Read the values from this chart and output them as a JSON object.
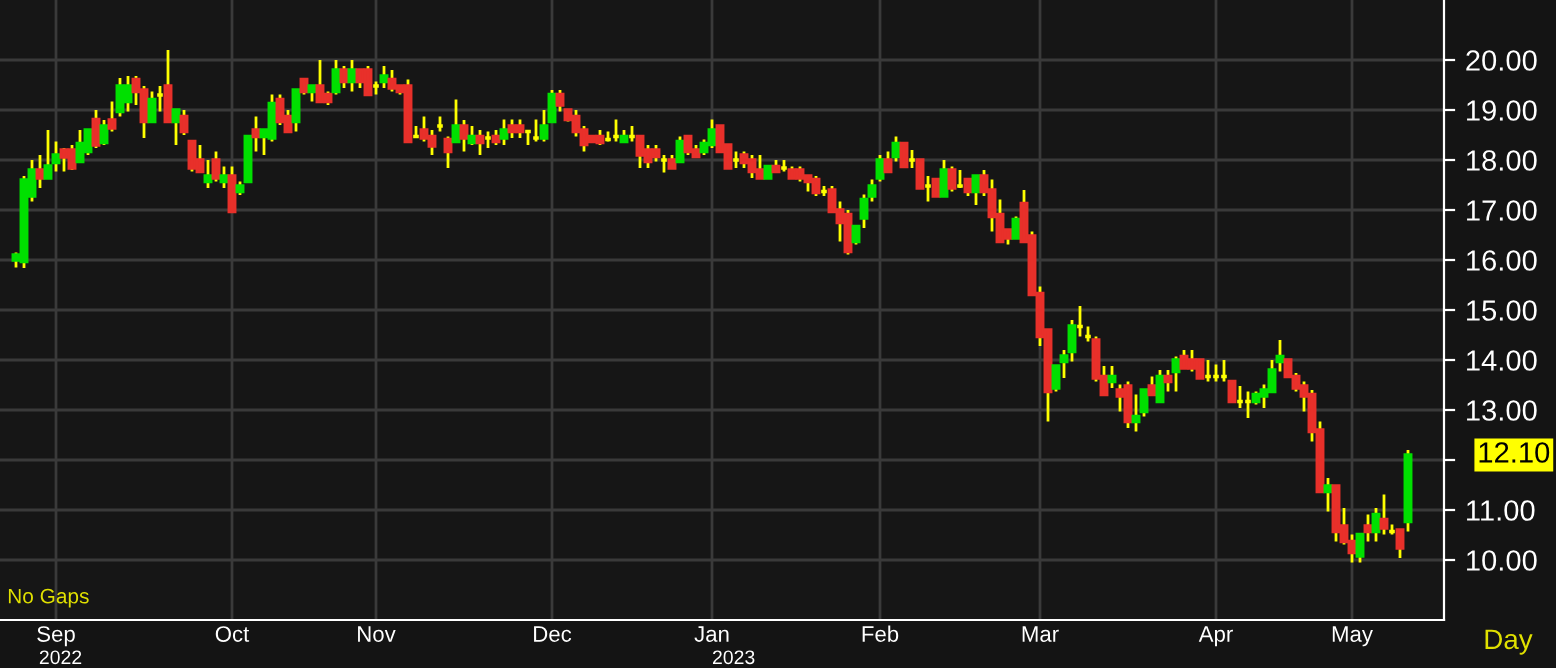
{
  "chart_data": {
    "type": "candlestick",
    "categories": [
      null,
      null,
      null,
      null,
      null,
      "Sep",
      null,
      null,
      null,
      null,
      null,
      null,
      null,
      null,
      null,
      null,
      null,
      null,
      null,
      null,
      null,
      null,
      null,
      null,
      null,
      null,
      null,
      "Oct",
      null,
      null,
      null,
      null,
      null,
      null,
      null,
      null,
      null,
      null,
      null,
      null,
      null,
      null,
      null,
      null,
      null,
      "Nov",
      null,
      null,
      null,
      null,
      null,
      null,
      null,
      null,
      null,
      null,
      null,
      null,
      null,
      null,
      null,
      null,
      null,
      null,
      null,
      null,
      null,
      "Dec",
      null,
      null,
      null,
      null,
      null,
      null,
      null,
      null,
      null,
      null,
      null,
      null,
      null,
      null,
      null,
      null,
      null,
      null,
      null,
      "Jan",
      null,
      null,
      null,
      null,
      null,
      null,
      null,
      null,
      null,
      null,
      null,
      null,
      null,
      null,
      null,
      null,
      null,
      null,
      null,
      null,
      "Feb",
      null,
      null,
      null,
      null,
      null,
      null,
      null,
      null,
      null,
      null,
      null,
      null,
      null,
      null,
      null,
      null,
      null,
      null,
      null,
      "Mar",
      null,
      null,
      null,
      null,
      null,
      null,
      null,
      null,
      null,
      null,
      null,
      null,
      null,
      null,
      null,
      null,
      null,
      null,
      null,
      null,
      null,
      "Apr",
      null,
      null,
      null,
      null,
      null,
      null,
      null,
      null,
      null,
      null,
      null,
      null,
      null,
      null,
      null,
      null,
      "May",
      null,
      null,
      null,
      null,
      null,
      null,
      null
    ],
    "ohlc": [
      [
        16.0,
        16.15,
        15.85,
        16.1
      ],
      [
        15.97,
        17.68,
        15.84,
        17.6
      ],
      [
        17.28,
        18.0,
        17.17,
        17.8
      ],
      [
        17.8,
        18.1,
        17.44,
        17.64
      ],
      [
        17.64,
        18.6,
        17.64,
        17.88
      ],
      [
        17.95,
        18.37,
        17.77,
        18.1
      ],
      [
        18.2,
        18.24,
        17.77,
        18.06
      ],
      [
        18.2,
        18.3,
        17.8,
        17.84
      ],
      [
        17.97,
        18.6,
        17.97,
        18.33
      ],
      [
        18.17,
        18.6,
        18.1,
        18.6
      ],
      [
        18.81,
        19.0,
        18.24,
        18.3
      ],
      [
        18.35,
        18.8,
        18.3,
        18.68
      ],
      [
        18.8,
        19.17,
        18.57,
        18.64
      ],
      [
        18.97,
        19.64,
        18.87,
        19.48
      ],
      [
        19.17,
        19.68,
        18.97,
        19.48
      ],
      [
        19.61,
        19.68,
        19.1,
        19.37
      ],
      [
        19.4,
        19.48,
        18.44,
        18.77
      ],
      [
        18.77,
        19.37,
        18.77,
        19.21
      ],
      [
        19.3,
        19.48,
        18.97,
        19.3
      ],
      [
        19.48,
        20.2,
        18.77,
        18.77
      ],
      [
        18.77,
        19.0,
        18.3,
        19.0
      ],
      [
        18.87,
        19.0,
        18.5,
        18.57
      ],
      [
        18.37,
        18.37,
        17.77,
        17.84
      ],
      [
        18.0,
        18.3,
        17.77,
        17.77
      ],
      [
        17.57,
        18.0,
        17.44,
        17.68
      ],
      [
        18.0,
        18.17,
        17.57,
        17.64
      ],
      [
        17.57,
        17.87,
        17.44,
        17.68
      ],
      [
        17.68,
        17.87,
        16.97,
        16.97
      ],
      [
        17.37,
        17.57,
        17.3,
        17.48
      ],
      [
        17.57,
        18.47,
        17.57,
        18.47
      ],
      [
        18.6,
        18.87,
        18.17,
        18.47
      ],
      [
        18.47,
        18.6,
        18.1,
        18.6
      ],
      [
        18.44,
        19.31,
        18.37,
        19.13
      ],
      [
        19.21,
        19.31,
        18.7,
        18.77
      ],
      [
        18.87,
        19.0,
        18.57,
        18.57
      ],
      [
        18.77,
        19.4,
        18.57,
        19.4
      ],
      [
        19.61,
        19.61,
        19.31,
        19.37
      ],
      [
        19.37,
        19.48,
        19.17,
        19.48
      ],
      [
        19.48,
        20.0,
        19.17,
        19.17
      ],
      [
        19.31,
        19.37,
        19.1,
        19.17
      ],
      [
        19.37,
        20.0,
        19.31,
        19.8
      ],
      [
        19.8,
        19.88,
        19.44,
        19.57
      ],
      [
        19.57,
        20.0,
        19.37,
        19.8
      ],
      [
        19.8,
        19.8,
        19.44,
        19.57
      ],
      [
        19.8,
        19.88,
        19.31,
        19.31
      ],
      [
        19.48,
        19.57,
        19.31,
        19.48
      ],
      [
        19.57,
        19.88,
        19.44,
        19.68
      ],
      [
        19.61,
        19.8,
        19.37,
        19.44
      ],
      [
        19.48,
        19.48,
        19.31,
        19.37
      ],
      [
        19.48,
        19.61,
        18.37,
        18.37
      ],
      [
        18.47,
        18.68,
        18.44,
        18.47
      ],
      [
        18.6,
        18.87,
        18.37,
        18.44
      ],
      [
        18.47,
        18.6,
        18.1,
        18.28
      ],
      [
        18.68,
        18.87,
        18.57,
        18.68
      ],
      [
        18.41,
        18.47,
        17.84,
        18.17
      ],
      [
        18.37,
        19.21,
        18.37,
        18.68
      ],
      [
        18.68,
        18.8,
        18.17,
        18.44
      ],
      [
        18.35,
        18.68,
        18.3,
        18.47
      ],
      [
        18.47,
        18.6,
        18.1,
        18.35
      ],
      [
        18.44,
        18.57,
        18.24,
        18.44
      ],
      [
        18.47,
        18.6,
        18.3,
        18.37
      ],
      [
        18.44,
        18.81,
        18.3,
        18.6
      ],
      [
        18.68,
        18.81,
        18.44,
        18.57
      ],
      [
        18.68,
        18.81,
        18.44,
        18.57
      ],
      [
        18.57,
        18.57,
        18.3,
        18.57
      ],
      [
        18.44,
        18.81,
        18.37,
        18.44
      ],
      [
        18.44,
        19.0,
        18.37,
        18.68
      ],
      [
        18.77,
        19.4,
        18.77,
        19.31
      ],
      [
        19.31,
        19.4,
        18.97,
        19.1
      ],
      [
        19.0,
        19.0,
        18.77,
        18.81
      ],
      [
        18.87,
        19.0,
        18.47,
        18.57
      ],
      [
        18.6,
        18.68,
        18.17,
        18.31
      ],
      [
        18.47,
        18.47,
        18.37,
        18.37
      ],
      [
        18.47,
        18.6,
        18.3,
        18.35
      ],
      [
        18.41,
        18.57,
        18.37,
        18.41
      ],
      [
        18.47,
        18.81,
        18.37,
        18.47
      ],
      [
        18.37,
        18.6,
        18.37,
        18.47
      ],
      [
        18.47,
        18.68,
        18.37,
        18.47
      ],
      [
        18.47,
        18.47,
        17.84,
        18.1
      ],
      [
        18.2,
        18.3,
        17.84,
        17.97
      ],
      [
        18.2,
        18.3,
        17.97,
        18.07
      ],
      [
        18.0,
        18.1,
        17.75,
        18.0
      ],
      [
        18.0,
        18.1,
        17.84,
        17.84
      ],
      [
        17.97,
        18.47,
        17.97,
        18.37
      ],
      [
        18.47,
        18.47,
        18.1,
        18.17
      ],
      [
        18.2,
        18.3,
        18.07,
        18.07
      ],
      [
        18.17,
        18.41,
        18.1,
        18.33
      ],
      [
        18.31,
        18.81,
        18.24,
        18.6
      ],
      [
        18.68,
        18.68,
        18.17,
        18.17
      ],
      [
        18.3,
        18.3,
        17.84,
        17.84
      ],
      [
        18.0,
        18.17,
        17.84,
        18.0
      ],
      [
        18.1,
        18.17,
        17.84,
        17.95
      ],
      [
        18.0,
        18.1,
        17.64,
        17.77
      ],
      [
        17.8,
        18.1,
        17.64,
        17.64
      ],
      [
        17.64,
        17.87,
        17.64,
        17.87
      ],
      [
        17.87,
        18.0,
        17.77,
        17.77
      ],
      [
        17.84,
        18.0,
        17.77,
        17.84
      ],
      [
        17.8,
        17.87,
        17.64,
        17.64
      ],
      [
        17.8,
        17.87,
        17.57,
        17.64
      ],
      [
        17.68,
        17.68,
        17.37,
        17.57
      ],
      [
        17.61,
        17.68,
        17.28,
        17.35
      ],
      [
        17.37,
        17.48,
        17.28,
        17.37
      ],
      [
        17.4,
        17.48,
        16.97,
        16.97
      ],
      [
        17.0,
        17.17,
        16.37,
        16.75
      ],
      [
        16.91,
        17.0,
        16.11,
        16.17
      ],
      [
        16.37,
        16.67,
        16.31,
        16.67
      ],
      [
        16.84,
        17.31,
        16.64,
        17.21
      ],
      [
        17.28,
        17.61,
        17.17,
        17.48
      ],
      [
        17.64,
        18.1,
        17.57,
        18.0
      ],
      [
        18.0,
        18.17,
        17.77,
        17.77
      ],
      [
        18.07,
        18.47,
        17.97,
        18.33
      ],
      [
        18.33,
        18.33,
        17.87,
        17.87
      ],
      [
        18.0,
        18.2,
        17.84,
        18.0
      ],
      [
        18.0,
        18.0,
        17.44,
        17.44
      ],
      [
        17.48,
        17.68,
        17.17,
        17.48
      ],
      [
        17.61,
        17.61,
        17.28,
        17.28
      ],
      [
        17.28,
        18.0,
        17.28,
        17.8
      ],
      [
        17.8,
        17.87,
        17.37,
        17.44
      ],
      [
        17.48,
        17.8,
        17.44,
        17.48
      ],
      [
        17.61,
        17.61,
        17.28,
        17.37
      ],
      [
        17.37,
        17.68,
        17.1,
        17.68
      ],
      [
        17.68,
        17.8,
        17.28,
        17.37
      ],
      [
        17.4,
        17.61,
        16.57,
        16.87
      ],
      [
        16.91,
        17.21,
        16.37,
        16.37
      ],
      [
        16.6,
        16.6,
        16.31,
        16.44
      ],
      [
        16.44,
        16.87,
        16.44,
        16.81
      ],
      [
        17.13,
        17.4,
        16.37,
        16.37
      ],
      [
        16.48,
        16.57,
        15.31,
        15.31
      ],
      [
        15.33,
        15.47,
        14.28,
        14.47
      ],
      [
        14.6,
        14.6,
        12.77,
        13.37
      ],
      [
        13.44,
        13.88,
        13.37,
        13.88
      ],
      [
        13.97,
        14.2,
        13.64,
        14.08
      ],
      [
        14.17,
        14.8,
        13.97,
        14.68
      ],
      [
        14.67,
        15.08,
        14.47,
        14.67
      ],
      [
        14.47,
        14.67,
        14.37,
        14.47
      ],
      [
        14.4,
        14.47,
        13.57,
        13.64
      ],
      [
        13.67,
        13.88,
        13.31,
        13.31
      ],
      [
        13.57,
        13.88,
        13.44,
        13.67
      ],
      [
        13.4,
        13.51,
        12.97,
        13.28
      ],
      [
        13.48,
        13.57,
        12.64,
        12.77
      ],
      [
        12.77,
        13.31,
        12.57,
        12.87
      ],
      [
        12.97,
        13.4,
        12.87,
        13.4
      ],
      [
        13.48,
        13.67,
        13.31,
        13.31
      ],
      [
        13.17,
        13.8,
        13.17,
        13.67
      ],
      [
        13.67,
        13.8,
        13.37,
        13.57
      ],
      [
        13.77,
        14.07,
        13.37,
        14.0
      ],
      [
        14.07,
        14.2,
        13.84,
        13.84
      ],
      [
        14.0,
        14.2,
        13.77,
        13.84
      ],
      [
        14.0,
        14.0,
        13.64,
        13.64
      ],
      [
        13.67,
        14.0,
        13.57,
        13.67
      ],
      [
        13.67,
        13.91,
        13.57,
        13.67
      ],
      [
        13.67,
        14.0,
        13.57,
        13.67
      ],
      [
        13.57,
        13.57,
        13.17,
        13.17
      ],
      [
        13.17,
        13.48,
        13.04,
        13.17
      ],
      [
        13.17,
        13.37,
        12.84,
        13.17
      ],
      [
        13.17,
        13.37,
        13.11,
        13.31
      ],
      [
        13.28,
        13.51,
        13.04,
        13.4
      ],
      [
        13.37,
        14.0,
        13.37,
        13.8
      ],
      [
        13.97,
        14.4,
        13.77,
        14.07
      ],
      [
        14.0,
        14.0,
        13.67,
        13.67
      ],
      [
        13.67,
        13.74,
        13.37,
        13.44
      ],
      [
        13.48,
        13.57,
        12.97,
        13.28
      ],
      [
        13.31,
        13.4,
        12.37,
        12.57
      ],
      [
        12.6,
        12.77,
        11.37,
        11.37
      ],
      [
        11.37,
        11.64,
        10.97,
        11.48
      ],
      [
        11.48,
        11.48,
        10.37,
        10.57
      ],
      [
        10.68,
        11.04,
        10.31,
        10.37
      ],
      [
        10.37,
        10.51,
        9.95,
        10.15
      ],
      [
        10.08,
        10.51,
        9.95,
        10.51
      ],
      [
        10.68,
        10.91,
        10.37,
        10.57
      ],
      [
        10.57,
        11.04,
        10.37,
        10.91
      ],
      [
        10.81,
        11.31,
        10.51,
        10.64
      ],
      [
        10.57,
        10.71,
        10.51,
        10.57
      ],
      [
        10.6,
        10.6,
        10.04,
        10.24
      ],
      [
        10.77,
        12.2,
        10.57,
        12.1
      ]
    ],
    "colors": [
      "#00e000",
      "#00e000",
      "#00e000",
      "#e8302a",
      "#00e000",
      "#00e000",
      "#e8302a",
      "#e8302a",
      "#00e000",
      "#00e000",
      "#e8302a",
      "#00e000",
      "#e8302a",
      "#00e000",
      "#00e000",
      "#e8302a",
      "#e8302a",
      "#00e000",
      "#ffff00",
      "#e8302a",
      "#00e000",
      "#e8302a",
      "#e8302a",
      "#e8302a",
      "#00e000",
      "#e8302a",
      "#00e000",
      "#e8302a",
      "#00e000",
      "#00e000",
      "#e8302a",
      "#00e000",
      "#00e000",
      "#e8302a",
      "#e8302a",
      "#00e000",
      "#e8302a",
      "#00e000",
      "#e8302a",
      "#e8302a",
      "#00e000",
      "#e8302a",
      "#00e000",
      "#e8302a",
      "#e8302a",
      "#ffff00",
      "#00e000",
      "#e8302a",
      "#e8302a",
      "#e8302a",
      "#ffff00",
      "#e8302a",
      "#e8302a",
      "#ffff00",
      "#e8302a",
      "#00e000",
      "#e8302a",
      "#00e000",
      "#e8302a",
      "#ffff00",
      "#e8302a",
      "#00e000",
      "#e8302a",
      "#e8302a",
      "#ffff00",
      "#ffff00",
      "#00e000",
      "#00e000",
      "#e8302a",
      "#e8302a",
      "#e8302a",
      "#e8302a",
      "#e8302a",
      "#e8302a",
      "#ffff00",
      "#ffff00",
      "#00e000",
      "#ffff00",
      "#e8302a",
      "#e8302a",
      "#e8302a",
      "#ffff00",
      "#e8302a",
      "#00e000",
      "#e8302a",
      "#e8302a",
      "#00e000",
      "#00e000",
      "#e8302a",
      "#e8302a",
      "#ffff00",
      "#e8302a",
      "#e8302a",
      "#e8302a",
      "#00e000",
      "#e8302a",
      "#ffff00",
      "#e8302a",
      "#e8302a",
      "#e8302a",
      "#e8302a",
      "#ffff00",
      "#e8302a",
      "#e8302a",
      "#e8302a",
      "#00e000",
      "#00e000",
      "#00e000",
      "#00e000",
      "#e8302a",
      "#00e000",
      "#e8302a",
      "#ffff00",
      "#e8302a",
      "#ffff00",
      "#e8302a",
      "#00e000",
      "#e8302a",
      "#ffff00",
      "#e8302a",
      "#00e000",
      "#e8302a",
      "#e8302a",
      "#e8302a",
      "#e8302a",
      "#00e000",
      "#e8302a",
      "#e8302a",
      "#e8302a",
      "#e8302a",
      "#00e000",
      "#00e000",
      "#00e000",
      "#ffff00",
      "#ffff00",
      "#e8302a",
      "#e8302a",
      "#00e000",
      "#e8302a",
      "#e8302a",
      "#00e000",
      "#00e000",
      "#e8302a",
      "#00e000",
      "#e8302a",
      "#00e000",
      "#e8302a",
      "#e8302a",
      "#e8302a",
      "#ffff00",
      "#ffff00",
      "#ffff00",
      "#e8302a",
      "#ffff00",
      "#ffff00",
      "#00e000",
      "#00e000",
      "#00e000",
      "#00e000",
      "#e8302a",
      "#e8302a",
      "#e8302a",
      "#e8302a",
      "#e8302a",
      "#00e000",
      "#e8302a",
      "#e8302a",
      "#e8302a",
      "#00e000",
      "#e8302a",
      "#00e000",
      "#e8302a",
      "#ffff00",
      "#e8302a",
      "#00e000"
    ],
    "ylim": [
      8.8,
      21.2
    ],
    "yticks": [
      {
        "value": 10,
        "label": "10.00"
      },
      {
        "value": 11,
        "label": "11.00"
      },
      {
        "value": 12,
        "label": null
      },
      {
        "value": 13,
        "label": "13.00"
      },
      {
        "value": 14,
        "label": "14.00"
      },
      {
        "value": 15,
        "label": "15.00"
      },
      {
        "value": 16,
        "label": "16.00"
      },
      {
        "value": 17,
        "label": "17.00"
      },
      {
        "value": 18,
        "label": "18.00"
      },
      {
        "value": 19,
        "label": "19.00"
      },
      {
        "value": 20,
        "label": "20.00"
      }
    ],
    "grid": true,
    "annotations": [
      "No Gaps",
      "Day",
      "2022",
      "2023",
      "12.10"
    ]
  }
}
